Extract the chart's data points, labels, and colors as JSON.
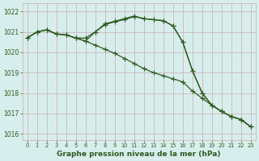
{
  "hours": [
    0,
    1,
    2,
    3,
    4,
    5,
    6,
    7,
    8,
    9,
    10,
    11,
    12,
    13,
    14,
    15,
    16,
    17,
    18,
    19,
    20,
    21,
    22,
    23
  ],
  "line1": [
    1020.7,
    1021.0,
    1021.1,
    1020.9,
    1020.85,
    1020.7,
    1020.55,
    1020.35,
    1020.15,
    1019.95,
    1019.7,
    1019.45,
    1019.2,
    1019.0,
    1018.85,
    1018.7,
    1018.55,
    1018.1,
    1017.75,
    1017.4,
    1017.1,
    1016.85,
    1016.7,
    1016.35
  ],
  "line2": [
    1020.7,
    1021.0,
    1021.1,
    1020.9,
    1020.85,
    1020.7,
    1020.55,
    1021.0,
    1021.35,
    1021.5,
    1021.6,
    1021.75,
    1021.65,
    1021.6,
    1021.55,
    1021.3,
    1020.5,
    1019.1,
    1018.0,
    1017.4,
    1017.1,
    1016.85,
    1016.7,
    1016.35
  ],
  "line3": [
    1020.7,
    1021.0,
    1021.1,
    1020.9,
    1020.85,
    1020.7,
    1020.7,
    1021.0,
    1021.4,
    1021.52,
    1021.65,
    1021.78,
    1021.65,
    1021.6,
    1021.55,
    1021.3,
    1020.5,
    1019.1,
    1018.0,
    1017.4,
    1017.1,
    1016.85,
    1016.7,
    1016.35
  ],
  "bg_color": "#d8eeec",
  "grid_color": "#ccb8b8",
  "line_color": "#2d5a1e",
  "ylabel_vals": [
    1016,
    1017,
    1018,
    1019,
    1020,
    1021,
    1022
  ],
  "xlabel": "Graphe pression niveau de la mer (hPa)",
  "ylim": [
    1015.7,
    1022.4
  ],
  "xlim": [
    -0.5,
    23.5
  ]
}
